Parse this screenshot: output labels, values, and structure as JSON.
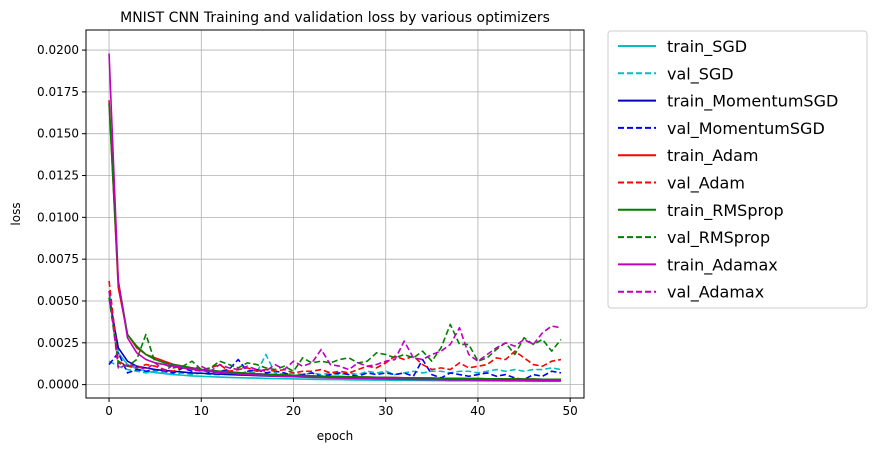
{
  "chart_data": {
    "type": "line",
    "title": "MNIST CNN Training and validation loss by various optimizers",
    "xlabel": "epoch",
    "ylabel": "loss",
    "xlim": [
      -2.5,
      51.5
    ],
    "ylim": [
      -0.0008,
      0.0212
    ],
    "xticks": [
      0,
      10,
      20,
      30,
      40,
      50
    ],
    "xtick_labels": [
      "0",
      "10",
      "20",
      "30",
      "40",
      "50"
    ],
    "yticks": [
      0.0,
      0.0025,
      0.005,
      0.0075,
      0.01,
      0.0125,
      0.015,
      0.0175,
      0.02
    ],
    "ytick_labels": [
      "0.0000",
      "0.0025",
      "0.0050",
      "0.0075",
      "0.0100",
      "0.0125",
      "0.0150",
      "0.0175",
      "0.0200"
    ],
    "grid": true,
    "legend_placement": "outside-right",
    "x": [
      0,
      1,
      2,
      3,
      4,
      5,
      6,
      7,
      8,
      9,
      10,
      11,
      12,
      13,
      14,
      15,
      16,
      17,
      18,
      19,
      20,
      21,
      22,
      23,
      24,
      25,
      26,
      27,
      28,
      29,
      30,
      31,
      32,
      33,
      34,
      35,
      36,
      37,
      38,
      39,
      40,
      41,
      42,
      43,
      44,
      45,
      46,
      47,
      48,
      49
    ],
    "series": [
      {
        "name": "train_SGD",
        "color": "#00bfbf",
        "dash": false,
        "values": [
          0.0056,
          0.0019,
          0.0012,
          0.00095,
          0.0008,
          0.00072,
          0.00066,
          0.0006,
          0.00056,
          0.00052,
          0.0005,
          0.00047,
          0.00045,
          0.00043,
          0.00041,
          0.0004,
          0.00039,
          0.00037,
          0.00036,
          0.00035,
          0.00034,
          0.00033,
          0.00032,
          0.00031,
          0.0003,
          0.0003,
          0.00029,
          0.00028,
          0.00028,
          0.00027,
          0.00027,
          0.00026,
          0.00026,
          0.00025,
          0.00025,
          0.00024,
          0.00024,
          0.00023,
          0.00023,
          0.00023,
          0.00022,
          0.00022,
          0.00022,
          0.00021,
          0.00021,
          0.00021,
          0.0002,
          0.0002,
          0.0002,
          0.0002
        ]
      },
      {
        "name": "val_SGD",
        "color": "#00bfbf",
        "dash": true,
        "values": [
          0.0014,
          0.0011,
          0.0009,
          0.0008,
          0.0007,
          0.0008,
          0.0007,
          0.0006,
          0.0007,
          0.0006,
          0.0007,
          0.0006,
          0.0006,
          0.0007,
          0.0006,
          0.0008,
          0.0007,
          0.0018,
          0.0007,
          0.0006,
          0.0007,
          0.0006,
          0.0007,
          0.0006,
          0.0007,
          0.0006,
          0.0007,
          0.0006,
          0.0008,
          0.0007,
          0.0008,
          0.0006,
          0.0007,
          0.0008,
          0.0007,
          0.0008,
          0.0008,
          0.0007,
          0.0008,
          0.0008,
          0.0007,
          0.0008,
          0.0009,
          0.0008,
          0.0009,
          0.0008,
          0.0009,
          0.0009,
          0.001,
          0.0009
        ]
      },
      {
        "name": "train_MomentumSGD",
        "color": "#0000bf",
        "dash": false,
        "values": [
          0.0052,
          0.0022,
          0.0014,
          0.0011,
          0.001,
          0.0009,
          0.00085,
          0.0008,
          0.00075,
          0.0007,
          0.00068,
          0.00065,
          0.00062,
          0.0006,
          0.00058,
          0.00056,
          0.00054,
          0.00052,
          0.0005,
          0.00049,
          0.00048,
          0.00047,
          0.00046,
          0.00045,
          0.00044,
          0.00043,
          0.00042,
          0.00041,
          0.0004,
          0.0004,
          0.00039,
          0.00038,
          0.00038,
          0.00037,
          0.00036,
          0.00036,
          0.00035,
          0.00035,
          0.00034,
          0.00034,
          0.00033,
          0.00033,
          0.00032,
          0.00032,
          0.00032,
          0.00031,
          0.00031,
          0.0003,
          0.0003,
          0.0003
        ]
      },
      {
        "name": "val_MomentumSGD",
        "color": "#0000ff",
        "dash": true,
        "values": [
          0.0012,
          0.0019,
          0.0007,
          0.0009,
          0.0008,
          0.0009,
          0.0008,
          0.0007,
          0.001,
          0.0008,
          0.0009,
          0.0007,
          0.0008,
          0.0009,
          0.0015,
          0.0008,
          0.0009,
          0.0007,
          0.0008,
          0.0007,
          0.0005,
          0.0006,
          0.0007,
          0.0005,
          0.0006,
          0.0007,
          0.0006,
          0.0005,
          0.0007,
          0.0006,
          0.0007,
          0.0006,
          0.0007,
          0.0005,
          0.0015,
          0.0006,
          0.0004,
          0.0007,
          0.0006,
          0.0005,
          0.0006,
          0.0007,
          0.0005,
          0.0006,
          0.0004,
          0.0003,
          0.0006,
          0.0005,
          0.0008,
          0.0007
        ]
      },
      {
        "name": "train_Adam",
        "color": "#ff0000",
        "dash": false,
        "values": [
          0.017,
          0.0058,
          0.003,
          0.0022,
          0.0018,
          0.0016,
          0.0014,
          0.0012,
          0.0011,
          0.001,
          0.0009,
          0.00085,
          0.0008,
          0.00076,
          0.00072,
          0.00068,
          0.00065,
          0.00062,
          0.0006,
          0.00058,
          0.00056,
          0.00054,
          0.00052,
          0.0005,
          0.00049,
          0.00048,
          0.00047,
          0.00046,
          0.00045,
          0.00044,
          0.00043,
          0.00042,
          0.00041,
          0.0004,
          0.0004,
          0.00039,
          0.00038,
          0.00038,
          0.00037,
          0.00036,
          0.00036,
          0.00035,
          0.00035,
          0.00034,
          0.00034,
          0.00033,
          0.00033,
          0.00032,
          0.00032,
          0.00032
        ]
      },
      {
        "name": "val_Adam",
        "color": "#ff0000",
        "dash": true,
        "values": [
          0.0062,
          0.0014,
          0.0011,
          0.001,
          0.0012,
          0.0011,
          0.0009,
          0.0008,
          0.0011,
          0.0009,
          0.0008,
          0.001,
          0.0012,
          0.0008,
          0.0009,
          0.001,
          0.0008,
          0.0009,
          0.0008,
          0.0009,
          0.0007,
          0.0008,
          0.0008,
          0.0009,
          0.0007,
          0.0008,
          0.0007,
          0.0009,
          0.0011,
          0.001,
          0.0013,
          0.0017,
          0.0015,
          0.0017,
          0.0012,
          0.0009,
          0.001,
          0.0009,
          0.0013,
          0.001,
          0.0011,
          0.0012,
          0.0016,
          0.0015,
          0.002,
          0.0016,
          0.0012,
          0.0011,
          0.0014,
          0.0015
        ]
      },
      {
        "name": "train_RMSprop",
        "color": "#007f00",
        "dash": false,
        "values": [
          0.0168,
          0.0062,
          0.003,
          0.0023,
          0.0018,
          0.0015,
          0.0013,
          0.0012,
          0.0011,
          0.001,
          0.0009,
          0.00085,
          0.0008,
          0.00076,
          0.00072,
          0.00068,
          0.00065,
          0.00062,
          0.0006,
          0.00058,
          0.00056,
          0.00054,
          0.00052,
          0.0005,
          0.00049,
          0.00048,
          0.00047,
          0.00046,
          0.00045,
          0.00044,
          0.00043,
          0.00042,
          0.00041,
          0.0004,
          0.0004,
          0.00039,
          0.00038,
          0.00038,
          0.00037,
          0.00036,
          0.00036,
          0.00035,
          0.00035,
          0.00034,
          0.00034,
          0.00033,
          0.00033,
          0.00032,
          0.00032,
          0.00032
        ]
      },
      {
        "name": "val_RMSprop",
        "color": "#007f00",
        "dash": true,
        "values": [
          0.0052,
          0.0013,
          0.0011,
          0.0015,
          0.003,
          0.0013,
          0.0012,
          0.001,
          0.0011,
          0.0014,
          0.0009,
          0.001,
          0.0014,
          0.0012,
          0.001,
          0.0013,
          0.0012,
          0.001,
          0.0009,
          0.0011,
          0.0008,
          0.0016,
          0.0013,
          0.0014,
          0.0013,
          0.0015,
          0.0016,
          0.0013,
          0.0014,
          0.0019,
          0.0018,
          0.0016,
          0.0018,
          0.0016,
          0.002,
          0.0014,
          0.0022,
          0.0036,
          0.0024,
          0.0024,
          0.0014,
          0.0016,
          0.0021,
          0.0025,
          0.0018,
          0.0028,
          0.0024,
          0.0027,
          0.002,
          0.0027
        ]
      },
      {
        "name": "train_Adamax",
        "color": "#bf00bf",
        "dash": false,
        "values": [
          0.0198,
          0.0062,
          0.0028,
          0.0019,
          0.0015,
          0.0013,
          0.0012,
          0.0011,
          0.001,
          0.00092,
          0.00085,
          0.00078,
          0.00072,
          0.00068,
          0.00064,
          0.0006,
          0.00057,
          0.00054,
          0.00051,
          0.00049,
          0.00047,
          0.00045,
          0.00043,
          0.00042,
          0.0004,
          0.00039,
          0.00038,
          0.00037,
          0.00036,
          0.00035,
          0.00034,
          0.00033,
          0.00032,
          0.00031,
          0.0003,
          0.0003,
          0.00029,
          0.00028,
          0.00028,
          0.00027,
          0.00027,
          0.00026,
          0.00026,
          0.00025,
          0.00025,
          0.00024,
          0.00024,
          0.00023,
          0.00023,
          0.00023
        ]
      },
      {
        "name": "val_Adamax",
        "color": "#bf00bf",
        "dash": true,
        "values": [
          0.0056,
          0.001,
          0.0012,
          0.0011,
          0.0009,
          0.0013,
          0.0008,
          0.0012,
          0.001,
          0.0009,
          0.0011,
          0.0008,
          0.0012,
          0.001,
          0.0009,
          0.0011,
          0.0009,
          0.0008,
          0.0012,
          0.0009,
          0.0014,
          0.0011,
          0.0013,
          0.0021,
          0.0012,
          0.0011,
          0.0009,
          0.0013,
          0.0011,
          0.0012,
          0.0014,
          0.0015,
          0.0026,
          0.0016,
          0.0015,
          0.0018,
          0.002,
          0.0024,
          0.0034,
          0.0018,
          0.0014,
          0.0018,
          0.0022,
          0.0025,
          0.0023,
          0.0027,
          0.0024,
          0.0031,
          0.0035,
          0.0034
        ]
      }
    ]
  }
}
